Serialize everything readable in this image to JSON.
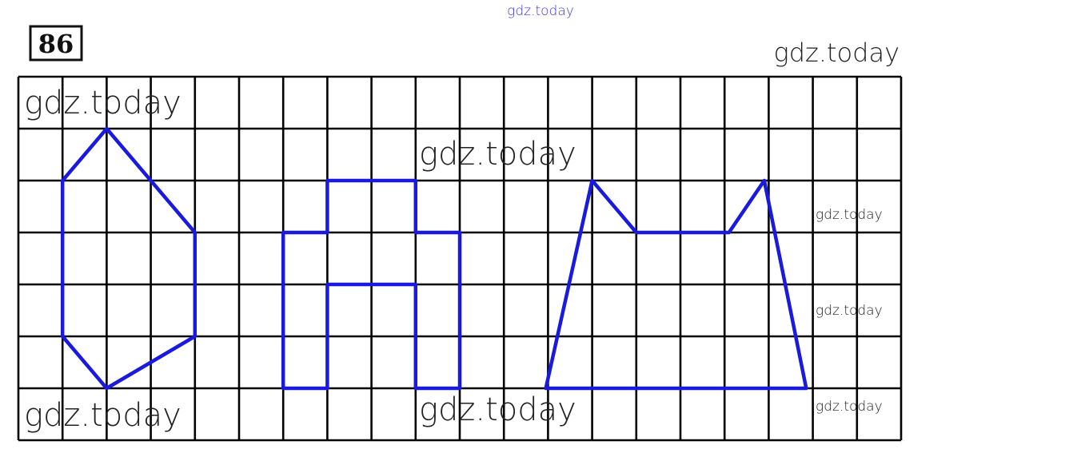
{
  "problem_number": "86",
  "watermarks": [
    {
      "text": "gdz.today",
      "size": "small-blue"
    },
    {
      "text": "gdz.today",
      "size": "large"
    },
    {
      "text": "gdz.today",
      "size": "large"
    },
    {
      "text": "gdz.today",
      "size": "large"
    },
    {
      "text": "gdz.today",
      "size": "small"
    },
    {
      "text": "gdz.today",
      "size": "small"
    },
    {
      "text": "gdz.today",
      "size": "large"
    },
    {
      "text": "gdz.today",
      "size": "large"
    },
    {
      "text": "gdz.today",
      "size": "small"
    }
  ],
  "grid": {
    "columns": 20,
    "rows": 7,
    "line_color": "#000000"
  },
  "shape_color": "#1a1adf",
  "shapes": [
    {
      "name": "hexagon",
      "points": [
        [
          2,
          1
        ],
        [
          4,
          3
        ],
        [
          4,
          5
        ],
        [
          2,
          6
        ],
        [
          1,
          5
        ],
        [
          1,
          2
        ]
      ]
    },
    {
      "name": "cross-polygon",
      "points": [
        [
          6,
          3
        ],
        [
          7,
          3
        ],
        [
          7,
          2
        ],
        [
          9,
          2
        ],
        [
          9,
          3
        ],
        [
          10,
          3
        ],
        [
          10,
          6
        ],
        [
          9,
          6
        ],
        [
          9,
          4
        ],
        [
          7,
          4
        ],
        [
          7,
          6
        ],
        [
          6,
          6
        ]
      ]
    },
    {
      "name": "cat-polygon",
      "points": [
        [
          11.95,
          6
        ],
        [
          13,
          2
        ],
        [
          14,
          3
        ],
        [
          16.1,
          3
        ],
        [
          16.9,
          2
        ],
        [
          17.85,
          6
        ]
      ]
    }
  ]
}
